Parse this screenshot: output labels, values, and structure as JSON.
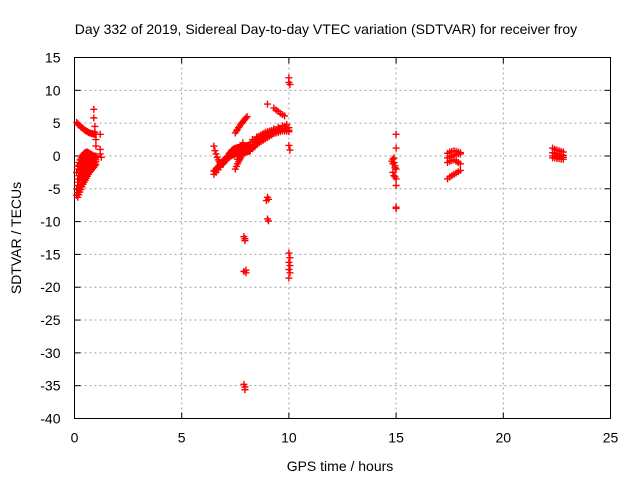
{
  "chart_data": {
    "type": "scatter",
    "title": "Day 332 of 2019, Sidereal Day-to-day VTEC variation (SDTVAR) for receiver froy",
    "xlabel": "GPS time / hours",
    "ylabel": "SDTVAR / TECUs",
    "xlim": [
      0,
      25
    ],
    "ylim": [
      -40,
      15
    ],
    "xticks": [
      0,
      5,
      10,
      15,
      20,
      25
    ],
    "yticks": [
      -40,
      -35,
      -30,
      -25,
      -20,
      -15,
      -10,
      -5,
      0,
      5,
      10,
      15
    ],
    "grid": true,
    "marker": "plus",
    "color": "#ff0000",
    "series": [
      {
        "name": "SDTVAR",
        "x": [
          0.1,
          0.15,
          0.2,
          0.25,
          0.3,
          0.35,
          0.4,
          0.45,
          0.5,
          0.55,
          0.6,
          0.65,
          0.7,
          0.75,
          0.8,
          0.85,
          0.9,
          0.95,
          1.0,
          0.1,
          0.15,
          0.2,
          0.25,
          0.3,
          0.35,
          0.4,
          0.45,
          0.5,
          0.55,
          0.6,
          0.65,
          0.7,
          0.75,
          0.8,
          0.85,
          0.9,
          0.95,
          1.0,
          0.1,
          0.15,
          0.2,
          0.25,
          0.3,
          0.35,
          0.4,
          0.45,
          0.5,
          0.55,
          0.6,
          0.65,
          0.7,
          0.75,
          0.8,
          0.85,
          0.9,
          0.95,
          1.0,
          0.1,
          0.15,
          0.2,
          0.25,
          0.3,
          0.35,
          0.4,
          0.45,
          0.5,
          0.55,
          0.6,
          0.65,
          0.7,
          0.75,
          0.8,
          0.85,
          0.9,
          0.95,
          1.0,
          0.15,
          0.2,
          0.25,
          0.3,
          0.35,
          0.4,
          0.45,
          0.5,
          0.55,
          0.6,
          0.65,
          0.7,
          0.75,
          0.8,
          0.85,
          0.9,
          0.95,
          1.0,
          0.15,
          0.2,
          0.25,
          0.3,
          0.35,
          0.4,
          0.45,
          0.5,
          0.55,
          0.6,
          0.65,
          0.7,
          0.75,
          0.8,
          0.85,
          0.9,
          0.95,
          1.0,
          0.15,
          0.2,
          0.25,
          0.3,
          0.35,
          0.4,
          0.45,
          0.5,
          0.55,
          0.6,
          0.65,
          0.7,
          0.75,
          0.8,
          0.85,
          0.9,
          0.95,
          1.0,
          0.9,
          0.9,
          0.95,
          0.95,
          1.0,
          1.0,
          1.2,
          1.2,
          1.2,
          1.25,
          6.5,
          6.55,
          6.6,
          6.65,
          6.7,
          6.75,
          6.8,
          6.85,
          6.9,
          6.95,
          7.0,
          7.05,
          7.1,
          7.15,
          7.2,
          7.25,
          7.3,
          7.35,
          7.4,
          7.45,
          7.5,
          7.55,
          7.6,
          7.65,
          7.7,
          7.75,
          7.8,
          7.85,
          7.9,
          7.95,
          8.0,
          8.05,
          8.1,
          8.15,
          6.5,
          6.55,
          6.6,
          6.65,
          6.7,
          6.75,
          6.8,
          6.85,
          6.9,
          6.95,
          7.0,
          7.05,
          7.1,
          7.15,
          7.2,
          7.25,
          7.3,
          7.35,
          7.4,
          7.45,
          7.5,
          7.55,
          7.6,
          7.65,
          7.7,
          7.75,
          7.8,
          7.85,
          7.9,
          7.95,
          8.0,
          8.05,
          8.1,
          8.15,
          6.5,
          6.6,
          6.7,
          6.8,
          6.9,
          7.0,
          7.1,
          7.2,
          7.3,
          7.4,
          7.5,
          7.6,
          7.7,
          7.8,
          7.9,
          8.0,
          7.5,
          7.55,
          7.6,
          7.65,
          7.7,
          7.75,
          7.8,
          7.85,
          7.9,
          7.95,
          8.0,
          8.05,
          7.5,
          7.55,
          7.6,
          7.65,
          7.7,
          7.75,
          7.8,
          7.85,
          7.9,
          7.95,
          8.0,
          8.05,
          7.6,
          7.65,
          7.7,
          7.75,
          7.8,
          7.85,
          8.2,
          8.3,
          8.4,
          8.5,
          8.6,
          8.7,
          8.8,
          8.9,
          9.0,
          9.1,
          9.2,
          9.3,
          9.4,
          9.5,
          9.6,
          9.7,
          9.8,
          9.9,
          10.0,
          8.2,
          8.3,
          8.4,
          8.5,
          8.6,
          8.7,
          8.8,
          8.9,
          9.0,
          9.1,
          9.2,
          9.3,
          9.4,
          9.5,
          9.6,
          9.7,
          9.8,
          9.9,
          10.0,
          8.2,
          8.3,
          8.4,
          8.5,
          8.6,
          8.7,
          8.8,
          8.9,
          9.0,
          9.1,
          9.2,
          9.3,
          9.4,
          9.5,
          9.6,
          9.7,
          9.8,
          9.9,
          10.0,
          8.3,
          8.5,
          8.7,
          8.9,
          9.1,
          9.3,
          9.5,
          9.7,
          9.9,
          8.4,
          8.6,
          8.8,
          9.0,
          9.2,
          9.4,
          9.6,
          9.8,
          9.0,
          9.3,
          9.4,
          9.5,
          9.6,
          9.7,
          9.8,
          9.0,
          9.05,
          9.0,
          9.05,
          8.95,
          7.9,
          7.95,
          7.95,
          8.0,
          8.0,
          7.9,
          7.9,
          7.95,
          7.95,
          10.0,
          10.0,
          10.05,
          10.0,
          10.05,
          10.0,
          10.05,
          10.0,
          10.05,
          10.0,
          10.0,
          10.05,
          14.85,
          14.9,
          14.95,
          15.0,
          14.85,
          14.9,
          14.95,
          15.0,
          14.8,
          14.85,
          14.9,
          14.95,
          15.0,
          15.0,
          15.0,
          15.0,
          15.0,
          17.4,
          17.5,
          17.6,
          17.7,
          17.8,
          17.9,
          18.0,
          17.4,
          17.5,
          17.6,
          17.7,
          17.8,
          17.9,
          18.0,
          17.4,
          17.5,
          17.6,
          17.7,
          17.8,
          17.9,
          18.0,
          17.4,
          17.5,
          17.6,
          17.7,
          17.8,
          17.9,
          18.0,
          22.3,
          22.4,
          22.5,
          22.6,
          22.7,
          22.8,
          22.3,
          22.4,
          22.5,
          22.6,
          22.7,
          22.8,
          22.3,
          22.4,
          22.5,
          22.6,
          22.7,
          22.8,
          22.3,
          22.4,
          22.5,
          22.6,
          22.7,
          22.8
        ],
        "y": [
          5.1,
          4.9,
          4.7,
          4.6,
          4.4,
          4.3,
          4.2,
          4.0,
          3.9,
          3.8,
          3.7,
          3.6,
          3.5,
          3.5,
          3.4,
          3.4,
          3.3,
          3.3,
          3.3,
          -2.5,
          -2.0,
          -1.6,
          -1.3,
          -1.0,
          -0.7,
          -0.5,
          -0.3,
          -0.1,
          0.0,
          0.1,
          0.2,
          0.2,
          0.3,
          0.2,
          0.1,
          0.0,
          -0.1,
          -0.2,
          -5.0,
          -4.5,
          -4.0,
          -3.6,
          -3.2,
          -2.8,
          -2.5,
          -2.2,
          -1.9,
          -1.7,
          -1.4,
          -1.2,
          -1.0,
          -0.8,
          -0.6,
          -0.5,
          -0.3,
          -0.2,
          -0.1,
          -6.0,
          -5.6,
          -5.2,
          -4.8,
          -4.4,
          -4.0,
          -3.7,
          -3.4,
          -3.1,
          -2.8,
          -2.5,
          -2.2,
          -2.0,
          -1.8,
          -1.6,
          -1.4,
          -1.2,
          -1.0,
          -0.8,
          -3.5,
          -3.0,
          -2.6,
          -2.2,
          -1.9,
          -1.6,
          -1.4,
          -1.2,
          -1.0,
          -0.8,
          -0.6,
          -0.5,
          -0.4,
          -0.3,
          -0.2,
          -0.1,
          0.0,
          0.0,
          -6.3,
          -5.9,
          -5.5,
          -5.1,
          -4.7,
          -4.3,
          -4.0,
          -3.7,
          -3.4,
          -3.1,
          -2.8,
          -2.5,
          -2.3,
          -2.1,
          -1.9,
          -1.7,
          -1.5,
          -1.3,
          -1.5,
          -1.0,
          -0.6,
          -0.3,
          0.0,
          0.2,
          0.4,
          0.5,
          0.6,
          0.6,
          0.5,
          0.4,
          0.3,
          0.1,
          0.0,
          -0.2,
          -0.4,
          -0.5,
          7.1,
          5.8,
          4.5,
          3.6,
          2.5,
          1.5,
          3.3,
          1.0,
          0.3,
          -0.2,
          1.5,
          0.8,
          0.3,
          -0.2,
          -0.6,
          -0.9,
          -1.1,
          -1.2,
          -1.2,
          -1.1,
          -0.9,
          -0.6,
          -0.3,
          0.0,
          0.3,
          0.5,
          0.7,
          0.9,
          1.0,
          1.1,
          1.2,
          1.2,
          1.3,
          1.3,
          1.3,
          1.4,
          1.4,
          1.5,
          1.5,
          1.5,
          1.5,
          1.6,
          1.6,
          1.7,
          -2.3,
          -2.2,
          -2.0,
          -1.8,
          -1.6,
          -1.4,
          -1.2,
          -1.0,
          -0.8,
          -0.6,
          -0.5,
          -0.4,
          -0.3,
          -0.2,
          -0.1,
          0.0,
          0.0,
          0.1,
          0.2,
          0.2,
          0.3,
          0.3,
          0.4,
          0.4,
          0.4,
          0.5,
          0.5,
          0.5,
          0.6,
          0.6,
          0.6,
          0.6,
          0.7,
          0.7,
          -2.8,
          -2.5,
          -2.1,
          -1.7,
          -1.3,
          -0.9,
          -0.6,
          -0.3,
          0.0,
          0.2,
          0.4,
          0.5,
          0.6,
          0.6,
          0.7,
          0.7,
          3.5,
          3.8,
          4.0,
          4.3,
          4.5,
          4.8,
          5.0,
          5.2,
          5.4,
          5.6,
          5.8,
          6.0,
          -2.0,
          -1.6,
          -1.2,
          -0.9,
          -0.6,
          -0.3,
          0.0,
          0.3,
          0.6,
          0.9,
          1.1,
          1.3,
          -0.5,
          0.0,
          0.5,
          1.0,
          1.5,
          2.0,
          1.0,
          1.3,
          1.6,
          1.9,
          2.2,
          2.5,
          2.7,
          2.9,
          3.1,
          3.3,
          3.5,
          3.7,
          3.8,
          3.9,
          4.0,
          4.1,
          4.2,
          4.2,
          4.3,
          1.8,
          2.1,
          2.4,
          2.7,
          3.0,
          3.2,
          3.4,
          3.6,
          3.7,
          3.8,
          3.9,
          4.0,
          4.0,
          4.1,
          4.1,
          4.0,
          3.9,
          3.8,
          3.7,
          0.8,
          1.1,
          1.4,
          1.7,
          2.0,
          2.2,
          2.4,
          2.6,
          2.8,
          3.0,
          3.2,
          3.4,
          3.5,
          3.6,
          3.7,
          3.8,
          3.8,
          3.9,
          3.9,
          2.5,
          2.9,
          3.2,
          3.5,
          3.8,
          4.1,
          4.4,
          4.6,
          4.8,
          2.2,
          2.6,
          3.0,
          3.3,
          3.6,
          3.9,
          4.2,
          4.5,
          7.9,
          7.3,
          7.0,
          6.8,
          6.5,
          6.3,
          6.1,
          -6.3,
          -6.6,
          -9.6,
          -9.9,
          -6.8,
          -12.3,
          -12.6,
          -12.9,
          -17.4,
          -17.8,
          -17.6,
          -34.8,
          -35.2,
          -35.6,
          11.9,
          11.2,
          10.9,
          -14.8,
          -15.5,
          -16.2,
          -16.7,
          -17.3,
          -17.8,
          -18.6,
          1.6,
          0.9,
          -0.5,
          -1.0,
          -1.5,
          -2.0,
          -2.5,
          -3.0,
          -3.2,
          -3.5,
          -0.8,
          -1.2,
          -0.3,
          -1.8,
          -4.5,
          -8.0,
          -7.8,
          3.3,
          1.2,
          -3.5,
          -3.2,
          -3.0,
          -2.8,
          -2.6,
          -2.4,
          -2.2,
          0.4,
          0.6,
          0.7,
          0.8,
          0.7,
          0.6,
          0.5,
          -0.3,
          -0.2,
          0.0,
          0.1,
          0.2,
          0.3,
          0.3,
          -1.0,
          -0.8,
          -0.7,
          -0.6,
          -0.8,
          -1.0,
          -1.2,
          1.2,
          1.0,
          0.9,
          0.8,
          0.7,
          0.6,
          0.5,
          0.4,
          0.3,
          0.2,
          0.2,
          0.1,
          0.0,
          0.0,
          -0.1,
          -0.1,
          -0.2,
          -0.2,
          -0.3,
          -0.3,
          -0.4,
          -0.4,
          -0.5,
          -0.5
        ]
      }
    ]
  }
}
